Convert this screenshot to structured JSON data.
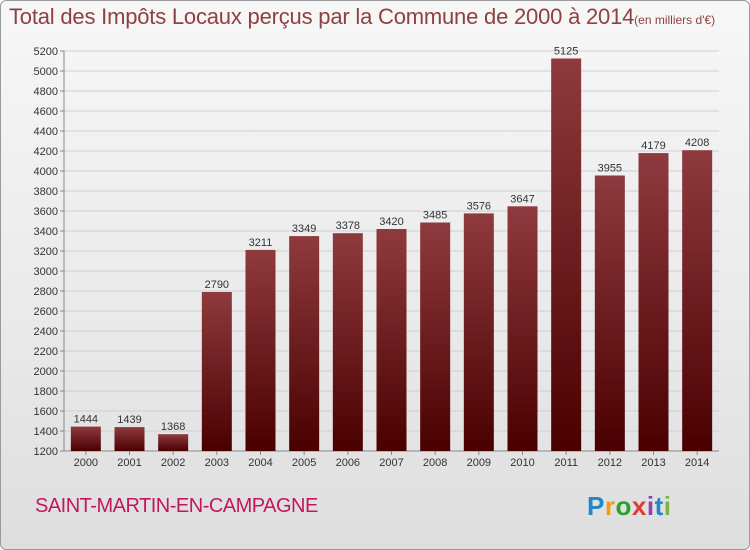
{
  "title": "Total des Impôts Locaux perçus par la Commune de 2000 à 2014",
  "title_unit": "(en milliers d'€)",
  "commune": "SAINT-MARTIN-EN-CAMPAGNE",
  "logo": {
    "letters": [
      "P",
      "r",
      "o",
      "x",
      "i",
      "t",
      "i"
    ],
    "colors": [
      "#1e88c8",
      "#f39c12",
      "#2ca02c",
      "#e53935",
      "#8e44ad",
      "#1e88c8",
      "#7cb342"
    ]
  },
  "colors": {
    "bar_top": "#8f3a3e",
    "bar_bottom": "#4a0000",
    "title": "#8f4040",
    "commune": "#c2185b"
  },
  "chart_data": {
    "type": "bar",
    "title": "Total des Impôts Locaux perçus par la Commune de 2000 à 2014",
    "xlabel": "",
    "ylabel": "",
    "categories": [
      "2000",
      "2001",
      "2002",
      "2003",
      "2004",
      "2005",
      "2006",
      "2007",
      "2008",
      "2009",
      "2010",
      "2011",
      "2012",
      "2013",
      "2014"
    ],
    "values": [
      1444,
      1439,
      1368,
      2790,
      3211,
      3349,
      3378,
      3420,
      3485,
      3576,
      3647,
      5125,
      3955,
      4179,
      4208
    ],
    "ylim": [
      1200,
      5200
    ],
    "yticks": [
      1200,
      1400,
      1600,
      1800,
      2000,
      2200,
      2400,
      2600,
      2800,
      3000,
      3200,
      3400,
      3600,
      3800,
      4000,
      4200,
      4400,
      4600,
      4800,
      5000,
      5200
    ],
    "grid": true
  }
}
